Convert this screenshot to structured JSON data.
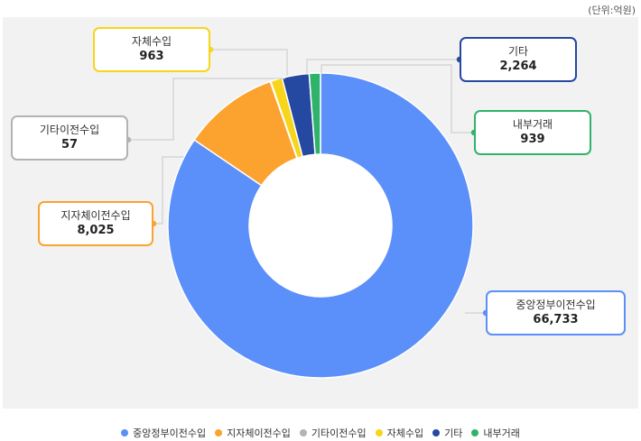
{
  "unit_label": "(단위:억원)",
  "chart_data": {
    "type": "pie",
    "donut": true,
    "title": "",
    "unit": "억원",
    "legend_position": "bottom",
    "slices": [
      {
        "label": "중앙정부이전수입",
        "value": 66733,
        "value_label": "66,733",
        "color": "#5b8ff9"
      },
      {
        "label": "지자체이전수입",
        "value": 8025,
        "value_label": "8,025",
        "color": "#fba22f"
      },
      {
        "label": "기타이전수입",
        "value": 57,
        "value_label": "57",
        "color": "#b3b3b3"
      },
      {
        "label": "자체수입",
        "value": 963,
        "value_label": "963",
        "color": "#f7d51a"
      },
      {
        "label": "기타",
        "value": 2264,
        "value_label": "2,264",
        "color": "#2548a0"
      },
      {
        "label": "내부거래",
        "value": 939,
        "value_label": "939",
        "color": "#2fb36a"
      }
    ]
  }
}
